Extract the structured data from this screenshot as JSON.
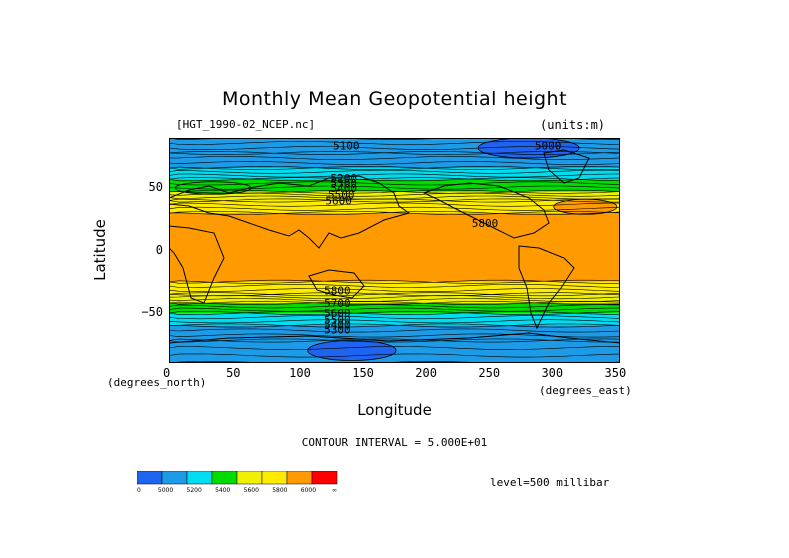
{
  "chart_data": {
    "type": "heatmap",
    "title": "Monthly Mean Geopotential height",
    "dataset": "[HGT_1990-02_NCEP.nc]",
    "units": "(units:m)",
    "xlabel": "Longitude",
    "ylabel": "Latitude",
    "xunit": "(degrees_east)",
    "yunit": "(degrees_north)",
    "xlim": [
      0,
      357.5
    ],
    "ylim": [
      -90,
      90
    ],
    "xticks": [
      "0",
      "50",
      "100",
      "150",
      "200",
      "250",
      "300",
      "350"
    ],
    "xtick_values": [
      0,
      50,
      100,
      150,
      200,
      250,
      300,
      350
    ],
    "yticks": [
      "50",
      "0",
      "-50"
    ],
    "ytick_values": [
      50,
      0,
      -50
    ],
    "contour_interval": "CONTOUR INTERVAL = 5.000E+01",
    "level": "level=500 millibar",
    "contour_labels": [
      {
        "text": "5100",
        "lon": 130,
        "lat": 84
      },
      {
        "text": "5000",
        "lon": 290,
        "lat": 84
      },
      {
        "text": "5200",
        "lon": 128,
        "lat": 58
      },
      {
        "text": "5300",
        "lon": 128,
        "lat": 54
      },
      {
        "text": "5400",
        "lon": 128,
        "lat": 50
      },
      {
        "text": "5500",
        "lon": 126,
        "lat": 45
      },
      {
        "text": "5600",
        "lon": 124,
        "lat": 40
      },
      {
        "text": "5800",
        "lon": 240,
        "lat": 22
      },
      {
        "text": "5800",
        "lon": 123,
        "lat": -32
      },
      {
        "text": "5700",
        "lon": 123,
        "lat": -42
      },
      {
        "text": "5600",
        "lon": 123,
        "lat": -50
      },
      {
        "text": "5500",
        "lon": 123,
        "lat": -55
      },
      {
        "text": "5400",
        "lon": 123,
        "lat": -59
      },
      {
        "text": "5300",
        "lon": 123,
        "lat": -63
      }
    ],
    "bands": [
      {
        "lat": [
          78,
          90
        ],
        "value": 5100
      },
      {
        "lat": [
          66,
          78
        ],
        "value": 5200
      },
      {
        "lat": [
          57,
          66
        ],
        "value": 5300
      },
      {
        "lat": [
          47,
          57
        ],
        "value": 5450
      },
      {
        "lat": [
          40,
          47
        ],
        "value": 5600
      },
      {
        "lat": [
          30,
          40
        ],
        "value": 5700
      },
      {
        "lat": [
          -25,
          30
        ],
        "value": 5850
      },
      {
        "lat": [
          -35,
          -25
        ],
        "value": 5700
      },
      {
        "lat": [
          -42,
          -35
        ],
        "value": 5600
      },
      {
        "lat": [
          -50,
          -42
        ],
        "value": 5450
      },
      {
        "lat": [
          -60,
          -50
        ],
        "value": 5300
      },
      {
        "lat": [
          -72,
          -60
        ],
        "value": 5200
      },
      {
        "lat": [
          -90,
          -72
        ],
        "value": 5100
      }
    ],
    "blobs": [
      {
        "lon": 285,
        "lat": 82,
        "rlon": 40,
        "rlat": 8,
        "value": 4950
      },
      {
        "lon": 145,
        "lat": -80,
        "rlon": 35,
        "rlat": 8,
        "value": 4950
      },
      {
        "lon": 330,
        "lat": 35,
        "rlon": 25,
        "rlat": 6,
        "value": 5850
      },
      {
        "lon": 35,
        "lat": 50,
        "rlon": 30,
        "rlat": 5,
        "value": 5450
      }
    ],
    "colorbar": {
      "levels": [
        "0",
        "5000",
        "5200",
        "5400",
        "5600",
        "5800",
        "6000",
        "∞"
      ],
      "colors": [
        "#1e64f0",
        "#1e9be6",
        "#00dcf0",
        "#00dc00",
        "#f0f000",
        "#ffeb00",
        "#ff9b00",
        "#ff0000"
      ]
    },
    "value_colors": [
      {
        "max": 5000,
        "color": "#1e64f0"
      },
      {
        "max": 5250,
        "color": "#1e9be6"
      },
      {
        "max": 5400,
        "color": "#00dcf0"
      },
      {
        "max": 5550,
        "color": "#00dc00"
      },
      {
        "max": 5650,
        "color": "#f0f000"
      },
      {
        "max": 5800,
        "color": "#ffeb00"
      },
      {
        "max": 6000,
        "color": "#ff9b00"
      },
      {
        "max": 99999,
        "color": "#ff0000"
      }
    ]
  }
}
